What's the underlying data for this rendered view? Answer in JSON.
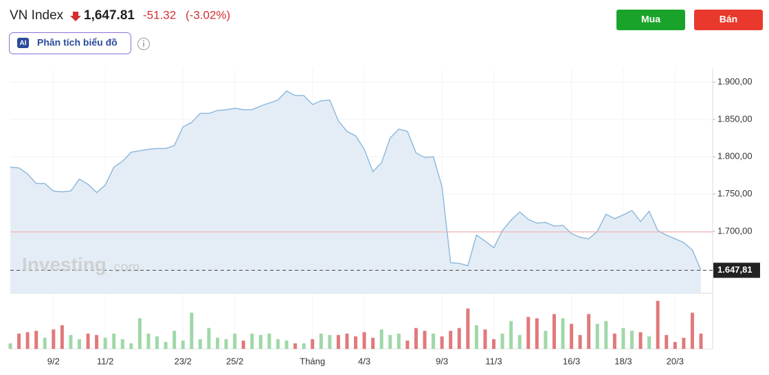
{
  "header": {
    "name": "VN Index",
    "price": "1,647.81",
    "change": "-51.32",
    "change_pct": "(-3.02%)",
    "ai_badge": "AI",
    "ai_button": "Phân tích biểu đồ",
    "buy": "Mua",
    "sell": "Bán",
    "watermark": "Investing",
    "watermark_suffix": ".com"
  },
  "chart_data": {
    "type": "area",
    "categories": [
      null,
      null,
      null,
      null,
      null,
      "9/2",
      null,
      null,
      null,
      null,
      null,
      "11/2",
      null,
      null,
      null,
      null,
      null,
      null,
      null,
      null,
      "23/2",
      null,
      null,
      null,
      null,
      null,
      "25/2",
      null,
      null,
      null,
      null,
      null,
      null,
      null,
      null,
      "Tháng",
      null,
      null,
      null,
      null,
      null,
      "4/3",
      null,
      null,
      null,
      null,
      null,
      null,
      null,
      null,
      "9/3",
      null,
      null,
      null,
      null,
      null,
      "11/3",
      null,
      null,
      null,
      null,
      null,
      null,
      null,
      null,
      "16/3",
      null,
      null,
      null,
      null,
      null,
      "18/3",
      null,
      null,
      null,
      null,
      null,
      "20/3",
      null,
      null,
      null
    ],
    "series": [
      {
        "name": "VN Index",
        "color": "#8fbadd",
        "fill": "#e4edf6",
        "values": [
          1786,
          1785,
          1777,
          1764,
          1764,
          1754,
          1753,
          1754,
          1770,
          1763,
          1752,
          1762,
          1786,
          1794,
          1806,
          1808,
          1810,
          1811,
          1811,
          1815,
          1840,
          1846,
          1858,
          1858,
          1862,
          1863,
          1865,
          1863,
          1863,
          1868,
          1872,
          1876,
          1888,
          1882,
          1882,
          1870,
          1875,
          1876,
          1848,
          1834,
          1828,
          1810,
          1780,
          1792,
          1825,
          1837,
          1834,
          1805,
          1799,
          1800,
          1760,
          1658,
          1657,
          1654,
          1695,
          1687,
          1678,
          1701,
          1715,
          1726,
          1716,
          1711,
          1712,
          1707,
          1708,
          1697,
          1692,
          1690,
          1700,
          1723,
          1717,
          1722,
          1728,
          1713,
          1727,
          1701,
          1695,
          1690,
          1685,
          1675,
          1648
        ]
      },
      {
        "name": "Volume",
        "up_color": "#9fd8a8",
        "down_color": "#e07a7c",
        "values": [
          8,
          22,
          24,
          26,
          16,
          28,
          34,
          20,
          14,
          22,
          20,
          16,
          22,
          14,
          8,
          44,
          22,
          18,
          10,
          26,
          12,
          52,
          14,
          30,
          16,
          14,
          22,
          12,
          22,
          20,
          22,
          14,
          12,
          8,
          8,
          14,
          22,
          20,
          20,
          22,
          18,
          24,
          16,
          28,
          20,
          22,
          12,
          30,
          26,
          22,
          18,
          26,
          30,
          58,
          34,
          28,
          14,
          22,
          40,
          20,
          46,
          44,
          26,
          50,
          44,
          36,
          20,
          50,
          36,
          40,
          22,
          30,
          26,
          24,
          18,
          69,
          20,
          10,
          16,
          52,
          22
        ]
      }
    ],
    "ylim": [
      1617,
      1918
    ],
    "vlim": [
      0,
      75
    ],
    "yticks": [
      {
        "value": 1700,
        "label": "1.700,00"
      },
      {
        "value": 1750,
        "label": "1.750,00"
      },
      {
        "value": 1800,
        "label": "1.800,00"
      },
      {
        "value": 1850,
        "label": "1.850,00"
      },
      {
        "value": 1900,
        "label": "1.900,00"
      }
    ],
    "reference": {
      "value": 1699.13,
      "color": "#f2a7a7"
    },
    "last": {
      "value": 1647.81,
      "label": "1.647,81"
    },
    "grid": true
  }
}
